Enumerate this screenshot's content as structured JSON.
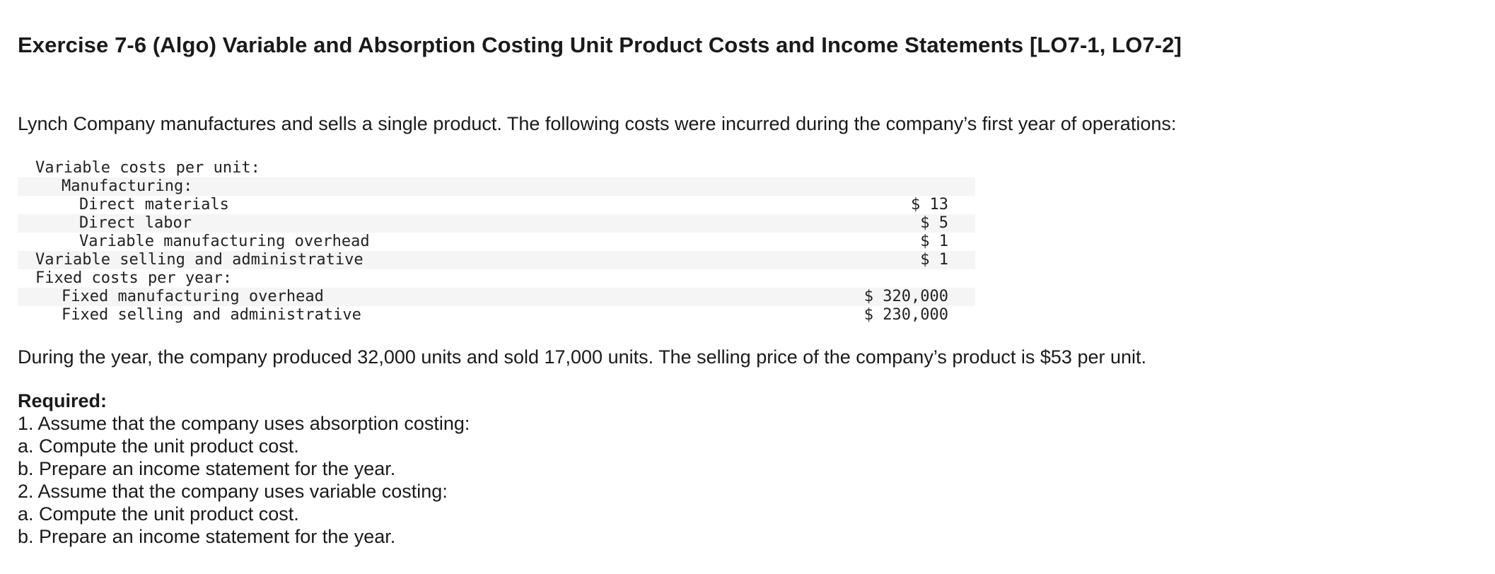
{
  "exercise": {
    "title": "Exercise 7-6 (Algo) Variable and Absorption Costing Unit Product Costs and Income Statements [LO7-1, LO7-2]",
    "intro": "Lynch Company manufactures and sells a single product. The following costs were incurred during the company’s first year of operations:",
    "cost_table": {
      "rows": [
        {
          "label": "Variable costs per unit:",
          "amount": ""
        },
        {
          "label": "Manufacturing:",
          "amount": ""
        },
        {
          "label": "Direct materials",
          "amount": "$ 13"
        },
        {
          "label": "Direct labor",
          "amount": "$ 5"
        },
        {
          "label": "Variable manufacturing overhead",
          "amount": "$ 1"
        },
        {
          "label": "Variable selling and administrative",
          "amount": "$ 1"
        },
        {
          "label": "Fixed costs per year:",
          "amount": ""
        },
        {
          "label": "Fixed manufacturing overhead",
          "amount": "$ 320,000"
        },
        {
          "label": "Fixed selling and administrative",
          "amount": "$ 230,000"
        }
      ]
    },
    "production_note": "During the year, the company produced 32,000 units and sold 17,000 units. The selling price of the company’s product is $53 per unit.",
    "required": {
      "heading": "Required:",
      "items": [
        "1. Assume that the company uses absorption costing:",
        "a. Compute the unit product cost.",
        "b. Prepare an income statement for the year.",
        "2. Assume that the company uses variable costing:",
        "a. Compute the unit product cost.",
        "b. Prepare an income statement for the year."
      ]
    }
  }
}
